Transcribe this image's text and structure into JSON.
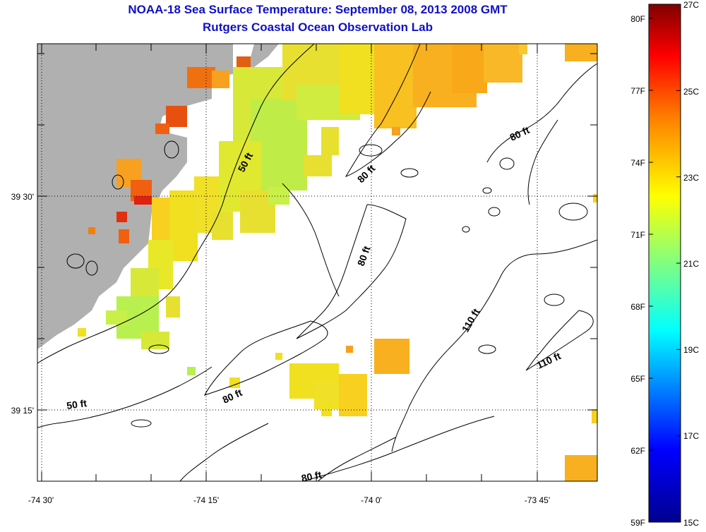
{
  "header": {
    "title": "NOAA-18 Sea Surface Temperature:  September 08, 2013 2008 GMT",
    "subtitle": "Rutgers Coastal Ocean Observation Lab"
  },
  "map": {
    "lon_ticks": [
      "-74 30'",
      "-74 15'",
      "-74 0'",
      "-73 45'"
    ],
    "lat_ticks": [
      "39 30'",
      "39 15'"
    ],
    "contour_labels": [
      "50 ft",
      "80 ft",
      "80 ft",
      "80 ft",
      "80 ft",
      "80 ft",
      "110 ft",
      "110 ft",
      "50 ft"
    ],
    "land_color": "#b0b0b0",
    "contour_color": "#000000"
  },
  "colorbar": {
    "fahrenheit_labels": [
      "80F",
      "77F",
      "74F",
      "71F",
      "68F",
      "65F",
      "62F",
      "59F"
    ],
    "celsius_labels": [
      "27C",
      "25C",
      "23C",
      "21C",
      "19C",
      "17C",
      "15C"
    ],
    "range_c": [
      15,
      27
    ],
    "colors": [
      "#00008f",
      "#0000ff",
      "#00ffff",
      "#80ff80",
      "#ffff00",
      "#ff8000",
      "#ff0000",
      "#800000"
    ]
  }
}
